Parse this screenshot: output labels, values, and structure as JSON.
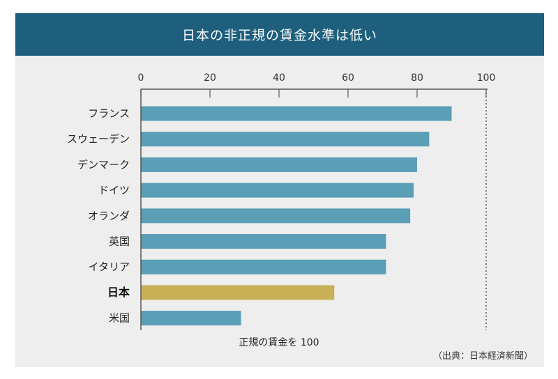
{
  "header": {
    "title": "日本の非正規の賃金水準は低い"
  },
  "source": "（出典：日本経済新聞）",
  "colors": {
    "bar": "#5a9fb6",
    "highlight": "#c8b055",
    "header": "#1d5f7c",
    "panel": "#eeeeee"
  },
  "chart_data": {
    "type": "bar",
    "orientation": "horizontal",
    "title": "日本の非正規の賃金水準は低い",
    "xlabel": "正規の賃金を 100",
    "ylabel": "",
    "xlim": [
      0,
      100
    ],
    "ticks": [
      0,
      20,
      40,
      60,
      80,
      100
    ],
    "categories": [
      "フランス",
      "スウェーデン",
      "デンマーク",
      "ドイツ",
      "オランダ",
      "英国",
      "イタリア",
      "日本",
      "米国"
    ],
    "values": [
      90,
      83.5,
      80,
      79,
      78,
      71,
      71,
      56,
      29
    ],
    "highlight": "日本",
    "reference_line": 100
  }
}
